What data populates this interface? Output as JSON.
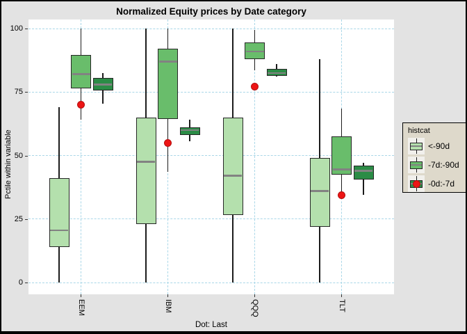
{
  "title": "Normalized Equity prices by Date category",
  "y_axis": {
    "label": "Pctile within variable",
    "tick_labels": [
      "100",
      "75",
      "50",
      "25",
      "0"
    ]
  },
  "x_axis": {
    "tick_labels": [
      "EEM",
      "IBM",
      "QQQ",
      "TLT"
    ]
  },
  "caption": "Dot: Last",
  "legend": {
    "title": "histcat",
    "entries": [
      "<-90d",
      "-7d:-90d",
      "-0d:-7d"
    ]
  },
  "colors": {
    "background": "#e3e3e3",
    "panel": "#ffffff",
    "grid": "#a9d7e8",
    "box_border": "#262626",
    "whisker": "#1b1b1b",
    "median": "#828282",
    "dot": "#ed1515",
    "legend_bg": "#ded9cb",
    "legend_key_bg": "#f1f0ec"
  },
  "chart_data": {
    "type": "boxplot",
    "title": "Normalized Equity prices by Date category",
    "xlabel": "",
    "ylabel": "Pctile within variable",
    "ylim": [
      0,
      100
    ],
    "y_ticks": [
      100,
      75,
      50,
      25,
      0
    ],
    "grid": "dashed light-blue horizontal lines at y ticks and vertical lines at category centers",
    "legend_position": "right",
    "legend_title": "histcat",
    "categories": [
      "EEM",
      "IBM",
      "QQQ",
      "TLT"
    ],
    "series": [
      {
        "name": "<-90d",
        "color": "#b4e0ad",
        "legend_dot": false,
        "boxes": [
          {
            "category": "EEM",
            "whisker_low": 0,
            "q1": 14,
            "median": 20.5,
            "q3": 41,
            "whisker_high": 69
          },
          {
            "category": "IBM",
            "whisker_low": 0,
            "q1": 23,
            "median": 47.5,
            "q3": 65,
            "whisker_high": 100
          },
          {
            "category": "QQQ",
            "whisker_low": 0,
            "q1": 26.5,
            "median": 42,
            "q3": 65,
            "whisker_high": 100
          },
          {
            "category": "TLT",
            "whisker_low": 0,
            "q1": 22,
            "median": 36,
            "q3": 49,
            "whisker_high": 88
          }
        ]
      },
      {
        "name": "-7d:-90d",
        "color": "#69bd6b",
        "legend_dot": false,
        "boxes": [
          {
            "category": "EEM",
            "whisker_low": 64,
            "q1": 76.5,
            "median": 82,
            "q3": 89.5,
            "whisker_high": 100
          },
          {
            "category": "IBM",
            "whisker_low": 43.5,
            "q1": 64.5,
            "median": 87,
            "q3": 92,
            "whisker_high": 100
          },
          {
            "category": "QQQ",
            "whisker_low": 83.5,
            "q1": 88,
            "median": 91,
            "q3": 94.5,
            "whisker_high": 99.5
          },
          {
            "category": "TLT",
            "whisker_low": 33,
            "q1": 42.5,
            "median": 44.5,
            "q3": 57.5,
            "whisker_high": 68.5
          }
        ]
      },
      {
        "name": "-0d:-7d",
        "color": "#2b8c46",
        "legend_dot": true,
        "boxes": [
          {
            "category": "EEM",
            "whisker_low": 70.5,
            "q1": 75.5,
            "median": 78,
            "q3": 80.5,
            "whisker_high": 82.5
          },
          {
            "category": "IBM",
            "whisker_low": 55.5,
            "q1": 58,
            "median": 60,
            "q3": 61,
            "whisker_high": 64
          },
          {
            "category": "QQQ",
            "whisker_low": 81,
            "q1": 81.5,
            "median": 82.5,
            "q3": 84,
            "whisker_high": 86
          },
          {
            "category": "TLT",
            "whisker_low": 34.5,
            "q1": 40.5,
            "median": 44,
            "q3": 46,
            "whisker_high": 47
          }
        ]
      }
    ],
    "dots": {
      "name": "Last",
      "color": "#ed1515",
      "values": [
        {
          "category": "EEM",
          "value": 70
        },
        {
          "category": "IBM",
          "value": 55
        },
        {
          "category": "QQQ",
          "value": 77
        },
        {
          "category": "TLT",
          "value": 34.5
        }
      ]
    }
  }
}
